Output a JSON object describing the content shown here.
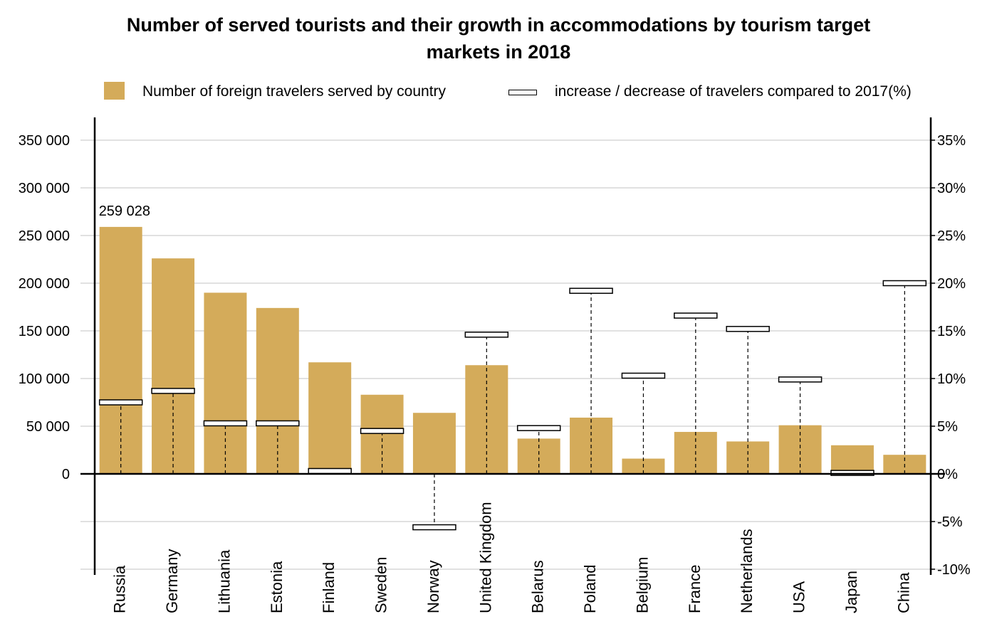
{
  "chart_data": {
    "type": "bar",
    "title_line1": "Number of served tourists and their growth in accommodations by tourism target",
    "title_line2": "markets in 2018",
    "legend": {
      "bars": "Number of foreign travelers served by country",
      "markers": "increase / decrease of travelers compared to 2017(%)"
    },
    "categories": [
      "Russia",
      "Germany",
      "Lithuania",
      "Estonia",
      "Finland",
      "Sweden",
      "Norway",
      "United Kingdom",
      "Belarus",
      "Poland",
      "Belgium",
      "France",
      "Netherlands",
      "USA",
      "Japan",
      "China"
    ],
    "series": [
      {
        "values": [
          259028,
          226000,
          190000,
          174000,
          117000,
          83000,
          64000,
          114000,
          37000,
          59000,
          16000,
          44000,
          34000,
          51000,
          30000,
          20000
        ]
      },
      {
        "axis": "right",
        "values": [
          7.5,
          8.7,
          5.3,
          5.3,
          0.3,
          4.5,
          -5.6,
          14.6,
          4.8,
          19.2,
          10.3,
          16.6,
          15.2,
          9.9,
          0.1,
          20.0
        ]
      }
    ],
    "data_labels": [
      {
        "category": "Russia",
        "text": "259 028"
      }
    ],
    "y_left": {
      "min": -110000,
      "max": 370000,
      "ticks": [
        350000,
        300000,
        250000,
        200000,
        150000,
        100000,
        50000,
        0
      ],
      "tick_labels": [
        "350 000",
        "300 000",
        "250 000",
        "200 000",
        "150 000",
        "100 000",
        "50 000",
        "0"
      ]
    },
    "y_right": {
      "min": -10,
      "max": 35,
      "ticks": [
        35,
        30,
        25,
        20,
        15,
        10,
        5,
        0,
        -5,
        -10
      ],
      "tick_labels": [
        "35%",
        "30%",
        "25%",
        "20%",
        "15%",
        "10%",
        "5%",
        "0%",
        "-5%",
        "-10%"
      ]
    },
    "grid": true,
    "bar_color": "#d4ab5a",
    "marker_color": "#ffffff"
  }
}
